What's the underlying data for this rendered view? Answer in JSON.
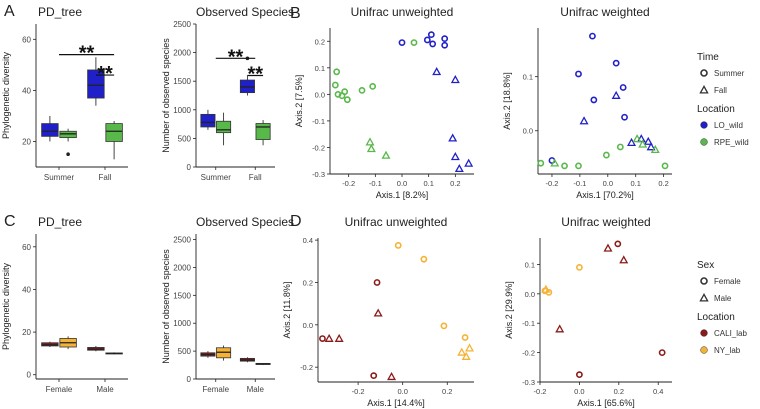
{
  "colors": {
    "lo_wild": "#2020c8",
    "rpe_wild": "#58b84a",
    "cali_lab": "#8b1a1a",
    "ny_lab": "#f5b235",
    "axis": "#222222",
    "grid": "#ffffff"
  },
  "legends": [
    {
      "title": "Time",
      "items": [
        {
          "label": "Summer",
          "shape": "circle",
          "color": "#333333"
        },
        {
          "label": "Fall",
          "shape": "triangle",
          "color": "#333333"
        }
      ]
    },
    {
      "title": "Location",
      "items": [
        {
          "label": "LO_wild",
          "shape": "dot",
          "color": "#2020c8"
        },
        {
          "label": "RPE_wild",
          "shape": "dot",
          "color": "#58b84a"
        }
      ]
    },
    {
      "title": "Sex",
      "items": [
        {
          "label": "Female",
          "shape": "circle",
          "color": "#333333"
        },
        {
          "label": "Male",
          "shape": "triangle",
          "color": "#333333"
        }
      ]
    },
    {
      "title": "Location",
      "items": [
        {
          "label": "CALI_lab",
          "shape": "dot",
          "color": "#8b1a1a"
        },
        {
          "label": "NY_lab",
          "shape": "dot",
          "color": "#f5b235"
        }
      ]
    }
  ],
  "chart_data": [
    {
      "panel_letter": "A",
      "title": "PD_tree",
      "type": "box",
      "ylabel": "Phylogenetic diversity",
      "ylim": [
        10,
        66
      ],
      "yticks": [
        20,
        40,
        60
      ],
      "categories": [
        "Summer",
        "Fall"
      ],
      "boxes": [
        {
          "cat": 0,
          "side": -1,
          "color": "#2020c8",
          "min": 20,
          "q1": 22,
          "median": 24,
          "q3": 27,
          "max": 30,
          "outliers": []
        },
        {
          "cat": 0,
          "side": 1,
          "color": "#58b84a",
          "min": 20,
          "q1": 21.5,
          "median": 23,
          "q3": 24,
          "max": 25,
          "outliers": [
            15
          ]
        },
        {
          "cat": 1,
          "side": -1,
          "color": "#2020c8",
          "min": 34,
          "q1": 37,
          "median": 42,
          "q3": 48,
          "max": 53,
          "outliers": []
        },
        {
          "cat": 1,
          "side": 1,
          "color": "#58b84a",
          "min": 13,
          "q1": 20,
          "median": 24,
          "q3": 27,
          "max": 28,
          "outliers": []
        }
      ],
      "annotations": [
        {
          "text": "**",
          "from": [
            0,
            0
          ],
          "to": [
            1,
            1
          ],
          "y": 54
        },
        {
          "text": "**",
          "from": [
            1,
            -1
          ],
          "to": [
            1,
            1
          ],
          "y": 46
        }
      ]
    },
    {
      "panel_letter": "",
      "title": "Observed Species",
      "type": "box",
      "ylabel": "Number of observed species",
      "ylim": [
        0,
        2500
      ],
      "yticks": [
        0,
        500,
        1000,
        1500,
        2000,
        2500
      ],
      "categories": [
        "Summer",
        "Fall"
      ],
      "boxes": [
        {
          "cat": 0,
          "side": -1,
          "color": "#2020c8",
          "min": 650,
          "q1": 700,
          "median": 780,
          "q3": 920,
          "max": 1000,
          "outliers": []
        },
        {
          "cat": 0,
          "side": 1,
          "color": "#58b84a",
          "min": 380,
          "q1": 600,
          "median": 650,
          "q3": 800,
          "max": 950,
          "outliers": []
        },
        {
          "cat": 1,
          "side": -1,
          "color": "#2020c8",
          "min": 1250,
          "q1": 1300,
          "median": 1400,
          "q3": 1520,
          "max": 1600,
          "outliers": [
            1900
          ]
        },
        {
          "cat": 1,
          "side": 1,
          "color": "#58b84a",
          "min": 380,
          "q1": 480,
          "median": 700,
          "q3": 760,
          "max": 820,
          "outliers": []
        }
      ],
      "annotations": [
        {
          "text": "**",
          "from": [
            0,
            0
          ],
          "to": [
            1,
            0
          ],
          "y": 1900
        },
        {
          "text": "**",
          "from": [
            1,
            -1
          ],
          "to": [
            1,
            1
          ],
          "y": 1600
        }
      ]
    },
    {
      "panel_letter": "B",
      "title": "Unifrac unweighted",
      "type": "scatter",
      "xlabel": "Axis.1   [8.2%]",
      "ylabel": "Axis.2   [7.5%]",
      "xlim": [
        -0.27,
        0.27
      ],
      "ylim": [
        -0.3,
        0.25
      ],
      "xticks": [
        -0.2,
        -0.1,
        0.0,
        0.1,
        0.2
      ],
      "yticks": [
        -0.3,
        -0.2,
        -0.1,
        0.0,
        0.1,
        0.2
      ],
      "points": [
        {
          "x": 0.0,
          "y": 0.195,
          "shape": "circle",
          "color": "#2020c8"
        },
        {
          "x": 0.095,
          "y": 0.205,
          "shape": "circle",
          "color": "#2020c8"
        },
        {
          "x": 0.11,
          "y": 0.225,
          "shape": "circle",
          "color": "#2020c8"
        },
        {
          "x": 0.115,
          "y": 0.19,
          "shape": "circle",
          "color": "#2020c8"
        },
        {
          "x": 0.16,
          "y": 0.185,
          "shape": "circle",
          "color": "#2020c8"
        },
        {
          "x": 0.16,
          "y": 0.21,
          "shape": "circle",
          "color": "#2020c8"
        },
        {
          "x": 0.13,
          "y": 0.085,
          "shape": "triangle",
          "color": "#2020c8"
        },
        {
          "x": 0.2,
          "y": 0.055,
          "shape": "triangle",
          "color": "#2020c8"
        },
        {
          "x": 0.2,
          "y": -0.235,
          "shape": "triangle",
          "color": "#2020c8"
        },
        {
          "x": 0.215,
          "y": -0.28,
          "shape": "triangle",
          "color": "#2020c8"
        },
        {
          "x": 0.25,
          "y": -0.26,
          "shape": "triangle",
          "color": "#2020c8"
        },
        {
          "x": 0.19,
          "y": -0.165,
          "shape": "triangle",
          "color": "#2020c8"
        },
        {
          "x": 0.045,
          "y": 0.195,
          "shape": "circle",
          "color": "#58b84a"
        },
        {
          "x": -0.245,
          "y": 0.085,
          "shape": "circle",
          "color": "#58b84a"
        },
        {
          "x": -0.25,
          "y": 0.035,
          "shape": "circle",
          "color": "#58b84a"
        },
        {
          "x": -0.24,
          "y": 0.0,
          "shape": "circle",
          "color": "#58b84a"
        },
        {
          "x": -0.225,
          "y": -0.005,
          "shape": "circle",
          "color": "#58b84a"
        },
        {
          "x": -0.215,
          "y": 0.01,
          "shape": "circle",
          "color": "#58b84a"
        },
        {
          "x": -0.205,
          "y": -0.02,
          "shape": "circle",
          "color": "#58b84a"
        },
        {
          "x": -0.15,
          "y": 0.015,
          "shape": "circle",
          "color": "#58b84a"
        },
        {
          "x": -0.11,
          "y": 0.03,
          "shape": "circle",
          "color": "#58b84a"
        },
        {
          "x": -0.12,
          "y": -0.18,
          "shape": "triangle",
          "color": "#58b84a"
        },
        {
          "x": -0.115,
          "y": -0.205,
          "shape": "triangle",
          "color": "#58b84a"
        },
        {
          "x": -0.06,
          "y": -0.23,
          "shape": "triangle",
          "color": "#58b84a"
        }
      ]
    },
    {
      "panel_letter": "",
      "title": "Unifrac weighted",
      "type": "scatter",
      "xlabel": "Axis.1   [70.2%]",
      "ylabel": "Axis.2   [18.8%]",
      "xlim": [
        -0.25,
        0.23
      ],
      "ylim": [
        -0.08,
        0.19
      ],
      "xticks": [
        -0.2,
        -0.1,
        0.0,
        0.1,
        0.2
      ],
      "yticks": [
        0.0,
        0.1
      ],
      "points": [
        {
          "x": -0.055,
          "y": 0.175,
          "shape": "circle",
          "color": "#2020c8"
        },
        {
          "x": 0.03,
          "y": 0.125,
          "shape": "circle",
          "color": "#2020c8"
        },
        {
          "x": -0.105,
          "y": 0.105,
          "shape": "circle",
          "color": "#2020c8"
        },
        {
          "x": -0.05,
          "y": 0.057,
          "shape": "circle",
          "color": "#2020c8"
        },
        {
          "x": 0.055,
          "y": 0.08,
          "shape": "circle",
          "color": "#2020c8"
        },
        {
          "x": 0.06,
          "y": 0.025,
          "shape": "circle",
          "color": "#2020c8"
        },
        {
          "x": -0.2,
          "y": -0.055,
          "shape": "circle",
          "color": "#2020c8"
        },
        {
          "x": 0.03,
          "y": 0.065,
          "shape": "triangle",
          "color": "#2020c8"
        },
        {
          "x": -0.085,
          "y": 0.018,
          "shape": "triangle",
          "color": "#2020c8"
        },
        {
          "x": 0.085,
          "y": -0.022,
          "shape": "triangle",
          "color": "#2020c8"
        },
        {
          "x": 0.12,
          "y": -0.015,
          "shape": "triangle",
          "color": "#2020c8"
        },
        {
          "x": 0.145,
          "y": -0.02,
          "shape": "triangle",
          "color": "#2020c8"
        },
        {
          "x": 0.155,
          "y": -0.03,
          "shape": "triangle",
          "color": "#2020c8"
        },
        {
          "x": -0.24,
          "y": -0.06,
          "shape": "circle",
          "color": "#58b84a"
        },
        {
          "x": -0.155,
          "y": -0.065,
          "shape": "circle",
          "color": "#58b84a"
        },
        {
          "x": -0.105,
          "y": -0.065,
          "shape": "circle",
          "color": "#58b84a"
        },
        {
          "x": -0.005,
          "y": -0.045,
          "shape": "circle",
          "color": "#58b84a"
        },
        {
          "x": 0.045,
          "y": -0.03,
          "shape": "circle",
          "color": "#58b84a"
        },
        {
          "x": 0.205,
          "y": -0.065,
          "shape": "circle",
          "color": "#58b84a"
        },
        {
          "x": -0.19,
          "y": -0.06,
          "shape": "triangle",
          "color": "#58b84a"
        },
        {
          "x": 0.105,
          "y": -0.015,
          "shape": "triangle",
          "color": "#58b84a"
        },
        {
          "x": 0.125,
          "y": -0.025,
          "shape": "triangle",
          "color": "#58b84a"
        },
        {
          "x": 0.17,
          "y": -0.035,
          "shape": "triangle",
          "color": "#58b84a"
        }
      ]
    },
    {
      "panel_letter": "C",
      "title": "PD_tree",
      "type": "box",
      "ylabel": "Phylogenetic diversity",
      "ylim": [
        -2,
        66
      ],
      "yticks": [
        0,
        20,
        40,
        60
      ],
      "categories": [
        "Female",
        "Male"
      ],
      "boxes": [
        {
          "cat": 0,
          "side": -1,
          "color": "#8b1a1a",
          "min": 13,
          "q1": 13.5,
          "median": 14,
          "q3": 15,
          "max": 15.5,
          "outliers": []
        },
        {
          "cat": 0,
          "side": 1,
          "color": "#f5b235",
          "min": 12,
          "q1": 13,
          "median": 15,
          "q3": 17,
          "max": 18,
          "outliers": []
        },
        {
          "cat": 1,
          "side": -1,
          "color": "#8b1a1a",
          "min": 11,
          "q1": 11.5,
          "median": 12,
          "q3": 12.8,
          "max": 13.5,
          "outliers": []
        },
        {
          "cat": 1,
          "side": 1,
          "color": "#f5b235",
          "min": 9.5,
          "q1": 9.8,
          "median": 10,
          "q3": 10.2,
          "max": 10.5,
          "outliers": []
        }
      ],
      "annotations": []
    },
    {
      "panel_letter": "",
      "title": "Observed Species",
      "type": "box",
      "ylabel": "Number of observed species",
      "ylim": [
        0,
        2600
      ],
      "yticks": [
        0,
        500,
        1000,
        1500,
        2000,
        2500
      ],
      "categories": [
        "Female",
        "Male"
      ],
      "boxes": [
        {
          "cat": 0,
          "side": -1,
          "color": "#8b1a1a",
          "min": 380,
          "q1": 410,
          "median": 440,
          "q3": 470,
          "max": 500,
          "outliers": []
        },
        {
          "cat": 0,
          "side": 1,
          "color": "#f5b235",
          "min": 330,
          "q1": 380,
          "median": 480,
          "q3": 560,
          "max": 600,
          "outliers": []
        },
        {
          "cat": 1,
          "side": -1,
          "color": "#8b1a1a",
          "min": 300,
          "q1": 320,
          "median": 340,
          "q3": 370,
          "max": 390,
          "outliers": []
        },
        {
          "cat": 1,
          "side": 1,
          "color": "#f5b235",
          "min": 250,
          "q1": 260,
          "median": 270,
          "q3": 280,
          "max": 285,
          "outliers": []
        }
      ],
      "annotations": []
    },
    {
      "panel_letter": "D",
      "title": "Unifrac unweighted",
      "type": "scatter",
      "xlabel": "Axis.1   [14.4%]",
      "ylabel": "Axis.2   [11.8%]",
      "xlim": [
        -0.38,
        0.32
      ],
      "ylim": [
        -0.27,
        0.41
      ],
      "xticks": [
        -0.2,
        0.0,
        0.2
      ],
      "yticks": [
        -0.2,
        0.0,
        0.2,
        0.4
      ],
      "points": [
        {
          "x": -0.36,
          "y": -0.065,
          "shape": "circle",
          "color": "#8b1a1a"
        },
        {
          "x": -0.115,
          "y": 0.2,
          "shape": "circle",
          "color": "#8b1a1a"
        },
        {
          "x": -0.13,
          "y": -0.24,
          "shape": "circle",
          "color": "#8b1a1a"
        },
        {
          "x": -0.33,
          "y": -0.065,
          "shape": "triangle",
          "color": "#8b1a1a"
        },
        {
          "x": -0.285,
          "y": -0.065,
          "shape": "triangle",
          "color": "#8b1a1a"
        },
        {
          "x": -0.11,
          "y": 0.055,
          "shape": "triangle",
          "color": "#8b1a1a"
        },
        {
          "x": -0.05,
          "y": -0.245,
          "shape": "triangle",
          "color": "#8b1a1a"
        },
        {
          "x": -0.02,
          "y": 0.375,
          "shape": "circle",
          "color": "#f5b235"
        },
        {
          "x": 0.095,
          "y": 0.31,
          "shape": "circle",
          "color": "#f5b235"
        },
        {
          "x": 0.185,
          "y": -0.005,
          "shape": "circle",
          "color": "#f5b235"
        },
        {
          "x": 0.28,
          "y": -0.06,
          "shape": "circle",
          "color": "#f5b235"
        },
        {
          "x": 0.265,
          "y": -0.13,
          "shape": "triangle",
          "color": "#f5b235"
        },
        {
          "x": 0.285,
          "y": -0.15,
          "shape": "triangle",
          "color": "#f5b235"
        },
        {
          "x": 0.3,
          "y": -0.11,
          "shape": "triangle",
          "color": "#f5b235"
        }
      ]
    },
    {
      "panel_letter": "",
      "title": "Unifrac weighted",
      "type": "scatter",
      "xlabel": "Axis.1   [65.6%]",
      "ylabel": "Axis.2   [29.9%]",
      "xlim": [
        -0.2,
        0.47
      ],
      "ylim": [
        -0.3,
        0.19
      ],
      "xticks": [
        -0.2,
        0.0,
        0.2,
        0.4
      ],
      "yticks": [
        -0.3,
        -0.2,
        -0.1,
        0.0,
        0.1
      ],
      "points": [
        {
          "x": 0.195,
          "y": 0.17,
          "shape": "circle",
          "color": "#8b1a1a"
        },
        {
          "x": 0.42,
          "y": -0.2,
          "shape": "circle",
          "color": "#8b1a1a"
        },
        {
          "x": 0.0,
          "y": -0.275,
          "shape": "circle",
          "color": "#8b1a1a"
        },
        {
          "x": 0.145,
          "y": 0.155,
          "shape": "triangle",
          "color": "#8b1a1a"
        },
        {
          "x": 0.225,
          "y": 0.115,
          "shape": "triangle",
          "color": "#8b1a1a"
        },
        {
          "x": -0.1,
          "y": -0.12,
          "shape": "triangle",
          "color": "#8b1a1a"
        },
        {
          "x": 0.0,
          "y": 0.09,
          "shape": "circle",
          "color": "#f5b235"
        },
        {
          "x": -0.175,
          "y": 0.01,
          "shape": "circle",
          "color": "#f5b235"
        },
        {
          "x": -0.155,
          "y": 0.005,
          "shape": "circle",
          "color": "#f5b235"
        },
        {
          "x": -0.17,
          "y": 0.015,
          "shape": "triangle",
          "color": "#f5b235"
        }
      ]
    }
  ]
}
